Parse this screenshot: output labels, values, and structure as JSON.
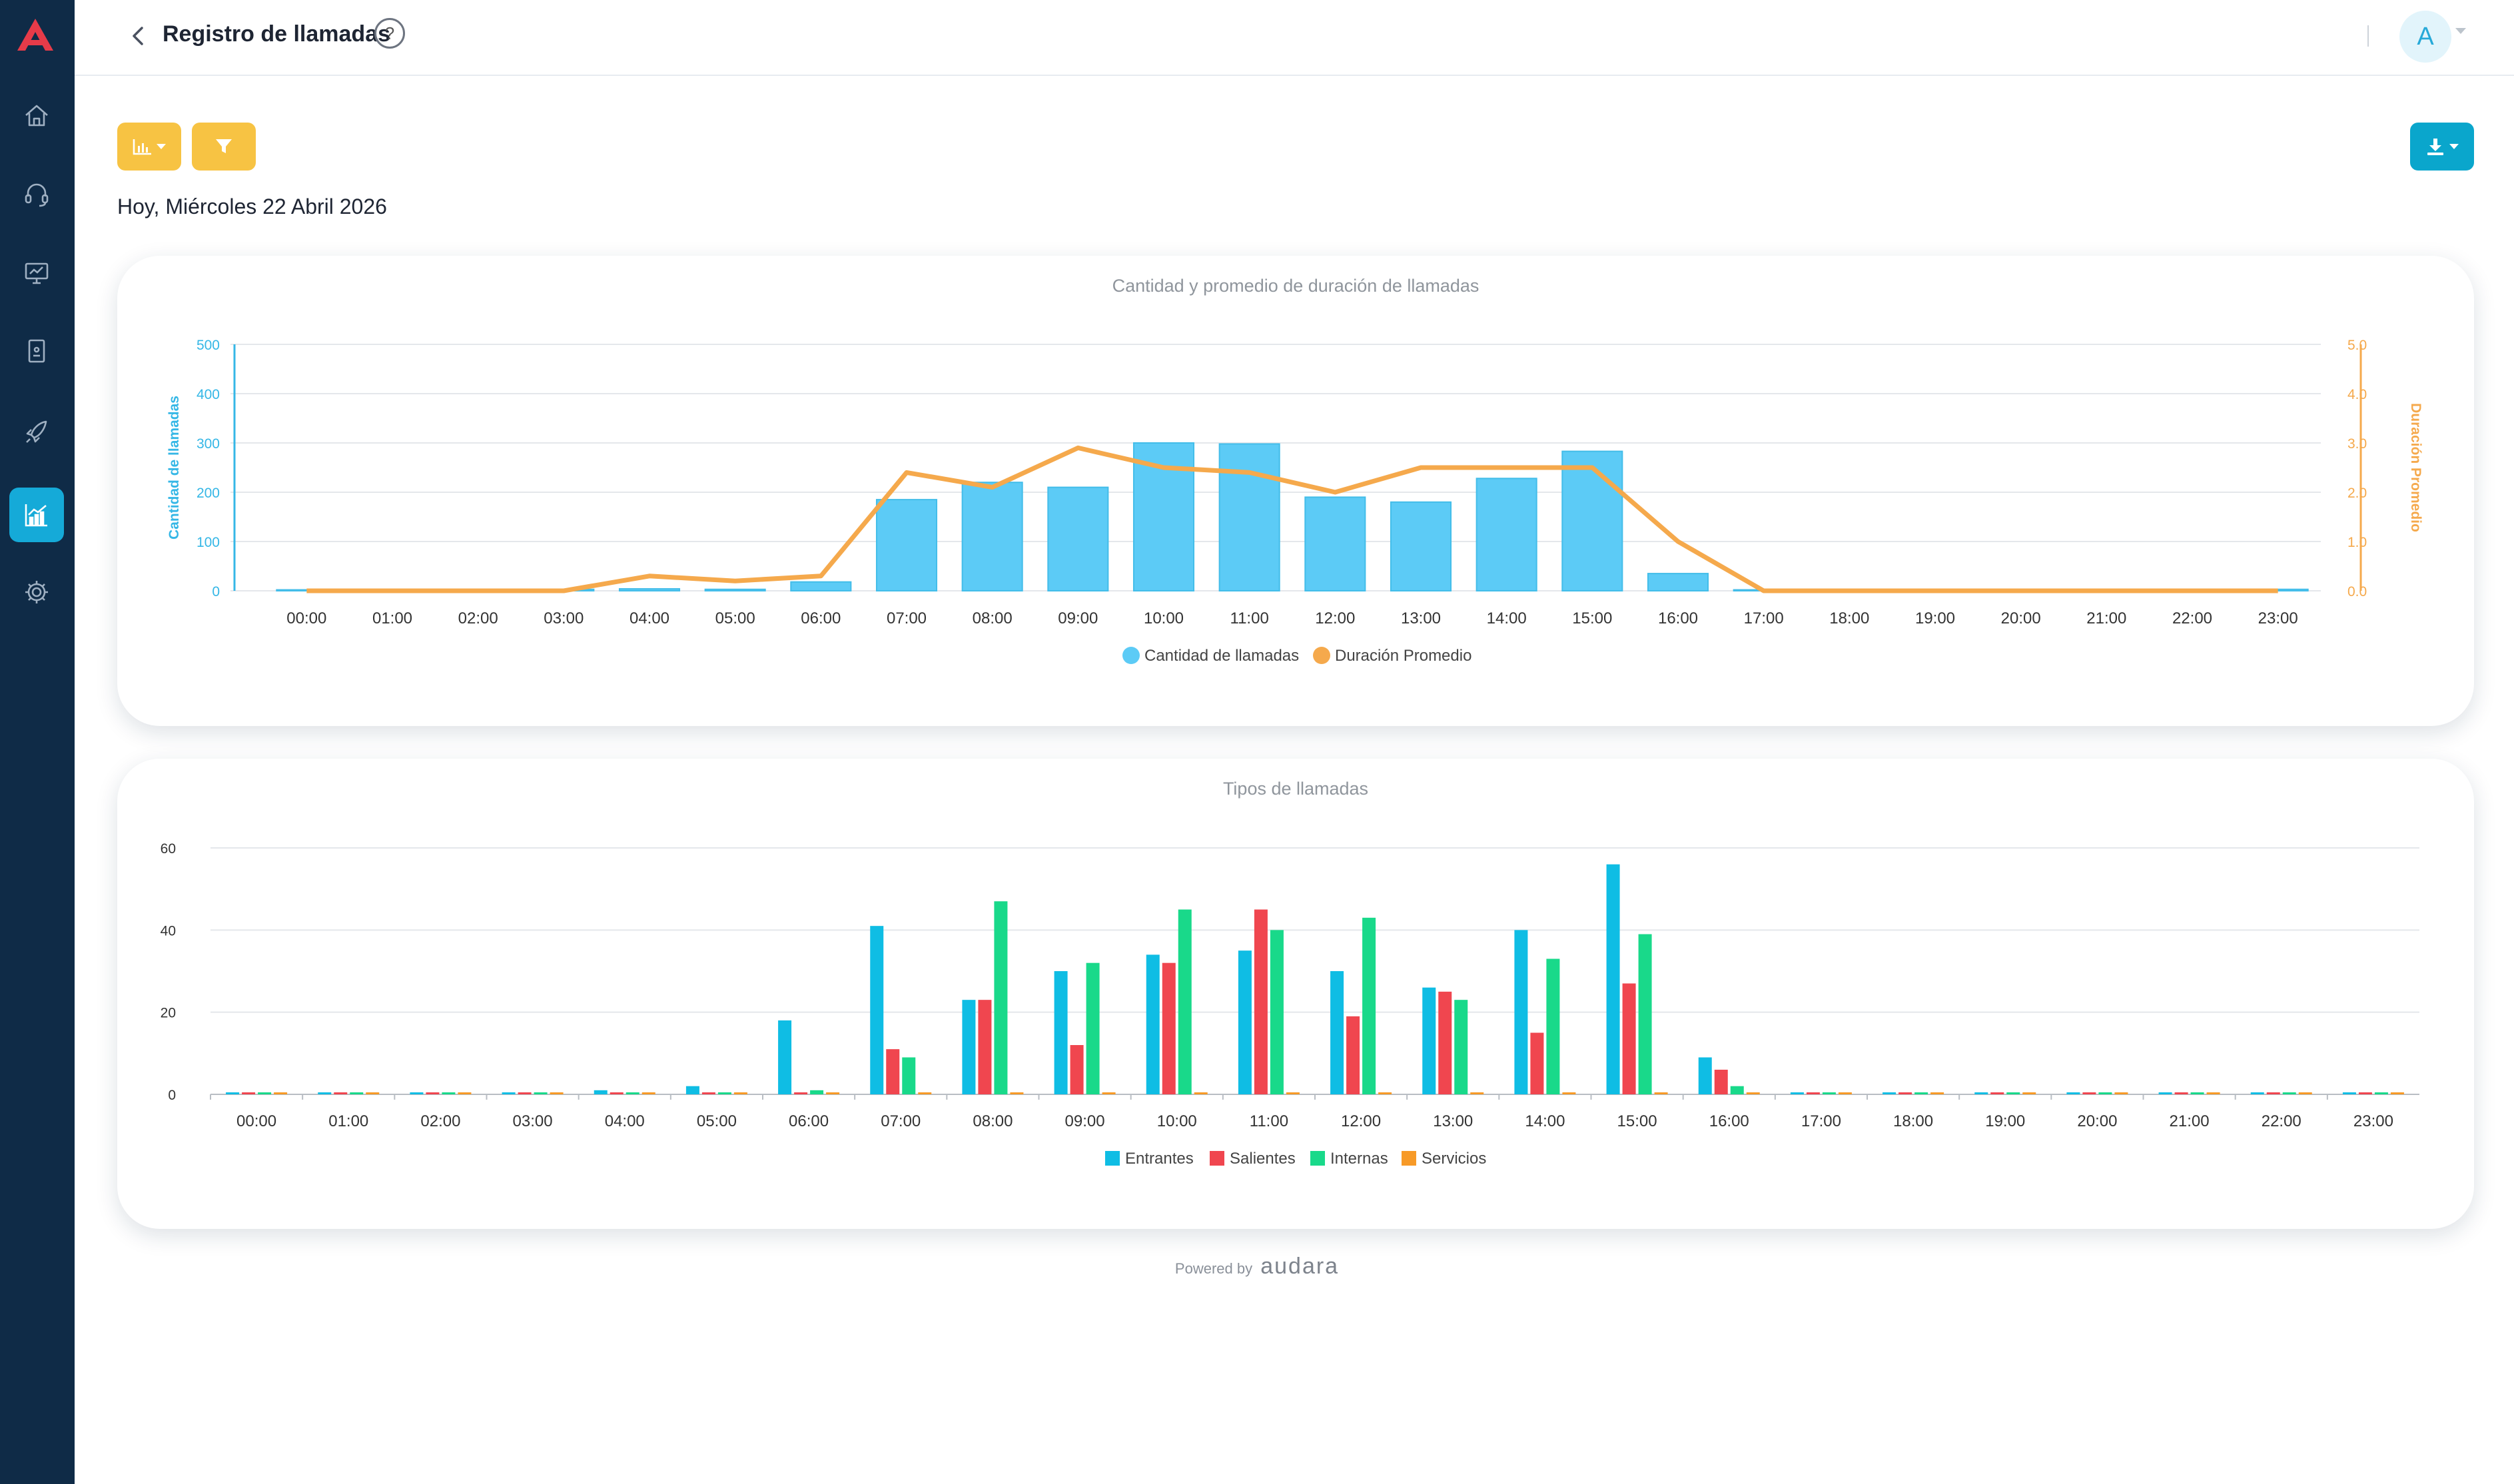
{
  "header": {
    "title": "Registro de llamadas",
    "help_label": "?",
    "avatar_letter": "A"
  },
  "date_label": "Hoy, Miércoles 22 Abril 2026",
  "footer": {
    "powered_label": "Powered by",
    "brand": "audara"
  },
  "icons": {
    "logo": "audara-logo-icon",
    "nav": [
      "home-icon",
      "headset-icon",
      "monitor-icon",
      "document-icon",
      "rocket-icon",
      "analytics-icon",
      "gear-icon"
    ],
    "toolbar": [
      "chart-icon",
      "filter-icon",
      "download-icon"
    ]
  },
  "colors": {
    "sidebar": "#0f2b47",
    "accent": "#15aad8",
    "button_yellow": "#f7c343",
    "button_teal": "#0aa6cc",
    "bars": "#5ccbf6",
    "line": "#f5a94c",
    "entrantes": "#0fbde4",
    "salientes": "#f0464f",
    "internas": "#19d98a",
    "servicios": "#f79a27"
  },
  "chart_data": [
    {
      "type": "bar",
      "title": "Cantidad y promedio de duración de llamadas",
      "categories": [
        "00:00",
        "01:00",
        "02:00",
        "03:00",
        "04:00",
        "05:00",
        "06:00",
        "07:00",
        "08:00",
        "09:00",
        "10:00",
        "11:00",
        "12:00",
        "13:00",
        "14:00",
        "15:00",
        "16:00",
        "17:00",
        "18:00",
        "19:00",
        "20:00",
        "21:00",
        "22:00",
        "23:00"
      ],
      "series": [
        {
          "name": "Cantidad de llamadas",
          "type": "bar",
          "axis": "left",
          "color": "#5ccbf6",
          "values": [
            2,
            1,
            1,
            3,
            4,
            3,
            18,
            185,
            220,
            210,
            300,
            298,
            190,
            180,
            228,
            283,
            35,
            2,
            1,
            1,
            1,
            1,
            1,
            3
          ]
        },
        {
          "name": "Duración Promedio",
          "type": "line",
          "axis": "right",
          "color": "#f5a94c",
          "values": [
            0,
            0,
            0,
            0,
            0.3,
            0.2,
            0.3,
            2.4,
            2.1,
            2.9,
            2.5,
            2.4,
            2.0,
            2.5,
            2.5,
            2.5,
            1.0,
            0,
            0,
            0,
            0,
            0,
            0,
            0
          ]
        }
      ],
      "ylabel": "Cantidad de llamadas",
      "ylim": [
        0,
        500
      ],
      "yticks": [
        "0",
        "100",
        "200",
        "300",
        "400",
        "500"
      ],
      "y2label": "Duración Promedio",
      "y2lim": [
        0,
        5
      ],
      "y2ticks": [
        "0.0",
        "1.0",
        "2.0",
        "3.0",
        "4.0",
        "5.0"
      ],
      "grid": true,
      "legend": "bottom"
    },
    {
      "type": "bar",
      "title": "Tipos de llamadas",
      "categories": [
        "00:00",
        "01:00",
        "02:00",
        "03:00",
        "04:00",
        "05:00",
        "06:00",
        "07:00",
        "08:00",
        "09:00",
        "10:00",
        "11:00",
        "12:00",
        "13:00",
        "14:00",
        "15:00",
        "16:00",
        "17:00",
        "18:00",
        "19:00",
        "20:00",
        "21:00",
        "22:00",
        "23:00"
      ],
      "series": [
        {
          "name": "Entrantes",
          "color": "#0fbde4",
          "values": [
            0,
            0,
            0,
            0,
            1,
            2,
            18,
            41,
            23,
            30,
            34,
            35,
            30,
            26,
            40,
            56,
            9,
            0,
            0,
            0,
            0,
            0,
            0,
            0
          ]
        },
        {
          "name": "Salientes",
          "color": "#f0464f",
          "values": [
            0,
            0,
            0,
            0,
            0,
            0,
            0,
            11,
            23,
            12,
            32,
            45,
            19,
            25,
            15,
            27,
            6,
            0,
            0,
            0,
            0,
            0,
            0,
            0
          ]
        },
        {
          "name": "Internas",
          "color": "#19d98a",
          "values": [
            0,
            0,
            0,
            0,
            0,
            0,
            1,
            9,
            47,
            32,
            45,
            40,
            43,
            23,
            33,
            39,
            2,
            0,
            0,
            0,
            0,
            0,
            0,
            0
          ]
        },
        {
          "name": "Servicios",
          "color": "#f79a27",
          "values": [
            0,
            0,
            0,
            0,
            0,
            0,
            0,
            0,
            0,
            0,
            0,
            0,
            0,
            0,
            0,
            0,
            0,
            0,
            0,
            0,
            0,
            0,
            0,
            0
          ]
        }
      ],
      "ylim": [
        0,
        60
      ],
      "yticks": [
        "0",
        "20",
        "40",
        "60"
      ],
      "grid": true,
      "legend": "bottom"
    }
  ]
}
